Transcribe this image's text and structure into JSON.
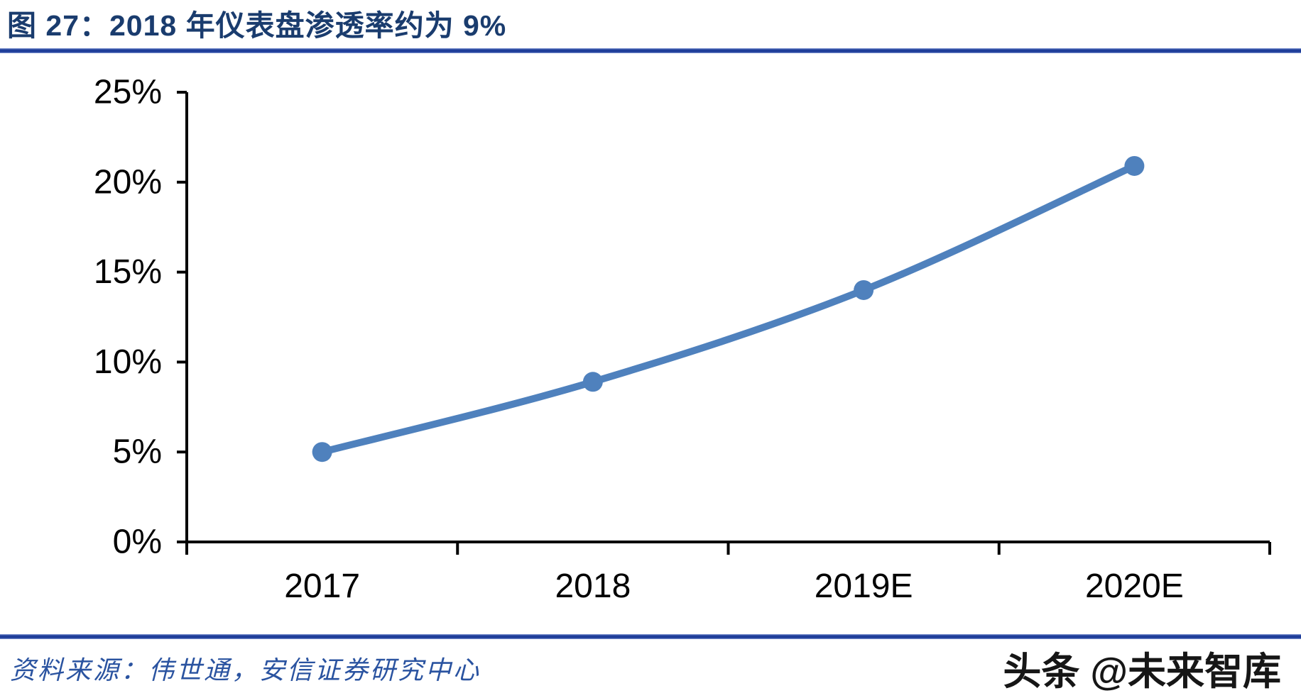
{
  "header": {
    "title": "图 27：2018 年仪表盘渗透率约为 9%"
  },
  "colors": {
    "line_blue": "#4F81BD",
    "title_navy": "#1A3C6E",
    "rule_blue": "#1E3D99",
    "source_blue": "#2A53A0",
    "axis_black": "#000000"
  },
  "chart_data": {
    "type": "line",
    "title": "2018 年仪表盘渗透率约为 9%",
    "xlabel": "",
    "ylabel": "",
    "categories": [
      "2017",
      "2018",
      "2019E",
      "2020E"
    ],
    "series": [
      {
        "name": "仪表盘渗透率",
        "values": [
          5.0,
          8.9,
          14.0,
          20.9
        ]
      }
    ],
    "ylim": [
      0,
      25
    ],
    "y_ticks": [
      {
        "value": 0,
        "label": "0%"
      },
      {
        "value": 5,
        "label": "5%"
      },
      {
        "value": 10,
        "label": "10%"
      },
      {
        "value": 15,
        "label": "15%"
      },
      {
        "value": 20,
        "label": "20%"
      },
      {
        "value": 25,
        "label": "25%"
      }
    ],
    "grid": false,
    "legend": "none",
    "smooth": true,
    "line_color": "#4F81BD",
    "marker": "circle"
  },
  "footer": {
    "source": "资料来源：伟世通，安信证券研究中心",
    "watermark": "头条 @未来智库"
  }
}
